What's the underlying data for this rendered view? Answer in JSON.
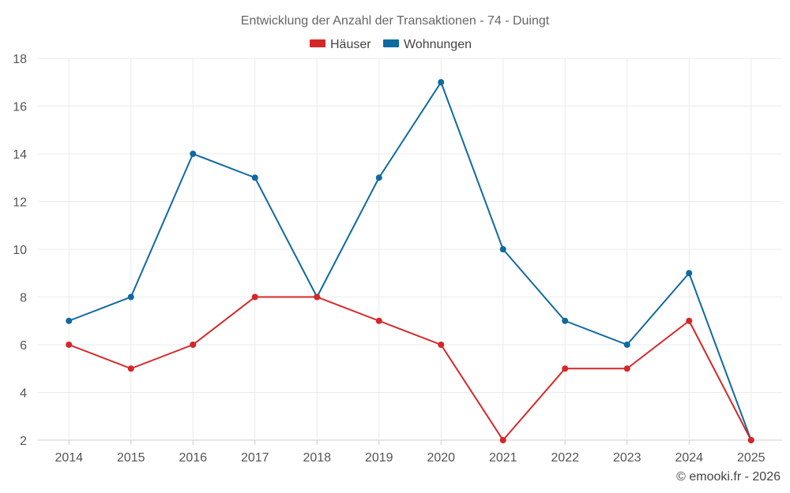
{
  "chart_data": {
    "type": "line",
    "title": "Entwicklung der Anzahl der Transaktionen - 74 - Duingt",
    "categories": [
      "2014",
      "2015",
      "2016",
      "2017",
      "2018",
      "2019",
      "2020",
      "2021",
      "2022",
      "2023",
      "2024",
      "2025"
    ],
    "series": [
      {
        "name": "Häuser",
        "color": "#d62728",
        "values": [
          6,
          5,
          6,
          8,
          8,
          7,
          6,
          2,
          5,
          5,
          7,
          2
        ]
      },
      {
        "name": "Wohnungen",
        "color": "#0f6aa0",
        "values": [
          7,
          8,
          14,
          13,
          8,
          13,
          17,
          10,
          7,
          6,
          9,
          2
        ]
      }
    ],
    "ylim": [
      2,
      18
    ],
    "yticks": [
      2,
      4,
      6,
      8,
      10,
      12,
      14,
      16,
      18
    ],
    "grid": true,
    "legend": "top-center",
    "xlabel": "",
    "ylabel": ""
  },
  "credit": "© emooki.fr - 2026"
}
